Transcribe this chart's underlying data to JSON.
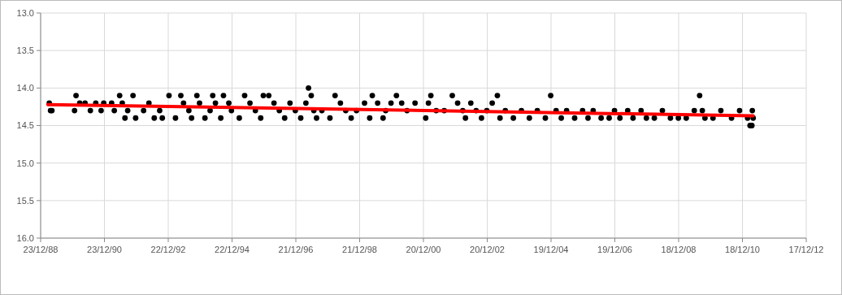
{
  "chart_data": {
    "type": "scatter",
    "marker": "circle",
    "grid": true,
    "xlim": [
      "1988-12-23",
      "2012-12-17"
    ],
    "xticks": [
      {
        "value": "1988-12-23",
        "label": "23/12/88"
      },
      {
        "value": "1990-12-23",
        "label": "23/12/90"
      },
      {
        "value": "1992-12-22",
        "label": "22/12/92"
      },
      {
        "value": "1994-12-22",
        "label": "22/12/94"
      },
      {
        "value": "1996-12-21",
        "label": "21/12/96"
      },
      {
        "value": "1998-12-21",
        "label": "21/12/98"
      },
      {
        "value": "2000-12-20",
        "label": "20/12/00"
      },
      {
        "value": "2002-12-20",
        "label": "20/12/02"
      },
      {
        "value": "2004-12-19",
        "label": "19/12/04"
      },
      {
        "value": "2006-12-19",
        "label": "19/12/06"
      },
      {
        "value": "2008-12-18",
        "label": "18/12/08"
      },
      {
        "value": "2010-12-18",
        "label": "18/12/10"
      },
      {
        "value": "2012-12-17",
        "label": "17/12/12"
      }
    ],
    "ylim": [
      16.0,
      13.0
    ],
    "yticks": [
      {
        "value": 13,
        "label": "13.0"
      },
      {
        "value": 13.5,
        "label": "13.5"
      },
      {
        "value": 14,
        "label": "14.0"
      },
      {
        "value": 14.5,
        "label": "14.5"
      },
      {
        "value": 15,
        "label": "15.0"
      },
      {
        "value": 15.5,
        "label": "15.5"
      },
      {
        "value": 16,
        "label": "16.0"
      }
    ],
    "series": [
      {
        "color": "#000000",
        "x": [
          "1989-04-01",
          "1989-04-15",
          "1989-05-01",
          "1990-01-15",
          "1990-02-01",
          "1990-03-15",
          "1990-05-15",
          "1990-07-15",
          "1990-09-15",
          "1990-11-15",
          "1990-12-15",
          "1991-03-15",
          "1991-04-15",
          "1991-06-15",
          "1991-07-15",
          "1991-08-15",
          "1991-09-15",
          "1991-11-15",
          "1991-12-15",
          "1992-03-15",
          "1992-05-15",
          "1992-07-15",
          "1992-09-15",
          "1992-10-15",
          "1992-12-31",
          "1993-03-15",
          "1993-05-15",
          "1993-06-15",
          "1993-08-15",
          "1993-09-15",
          "1993-11-15",
          "1993-12-15",
          "1994-02-15",
          "1994-04-15",
          "1994-05-15",
          "1994-06-15",
          "1994-08-15",
          "1994-09-15",
          "1994-11-15",
          "1994-12-15",
          "1995-03-15",
          "1995-05-15",
          "1995-07-15",
          "1995-09-15",
          "1995-11-15",
          "1995-12-15",
          "1996-02-15",
          "1996-04-15",
          "1996-06-15",
          "1996-08-15",
          "1996-10-15",
          "1996-12-15",
          "1997-02-15",
          "1997-04-15",
          "1997-05-15",
          "1997-06-15",
          "1997-07-15",
          "1997-08-15",
          "1997-10-15",
          "1998-01-15",
          "1998-03-15",
          "1998-05-15",
          "1998-07-15",
          "1998-09-15",
          "1998-11-15",
          "1999-02-15",
          "1999-04-15",
          "1999-05-15",
          "1999-07-15",
          "1999-09-15",
          "1999-10-15",
          "1999-12-15",
          "2000-02-15",
          "2000-04-15",
          "2000-06-15",
          "2000-09-15",
          "2001-01-15",
          "2001-02-15",
          "2001-03-15",
          "2001-05-15",
          "2001-08-15",
          "2001-11-15",
          "2002-01-15",
          "2002-03-15",
          "2002-04-15",
          "2002-06-15",
          "2002-08-15",
          "2002-10-15",
          "2002-12-15",
          "2003-02-15",
          "2003-04-15",
          "2003-05-15",
          "2003-07-15",
          "2003-10-15",
          "2004-01-15",
          "2004-04-15",
          "2004-07-15",
          "2004-10-15",
          "2004-12-15",
          "2005-02-15",
          "2005-04-15",
          "2005-06-15",
          "2005-09-15",
          "2005-12-15",
          "2006-02-15",
          "2006-04-15",
          "2006-07-15",
          "2006-10-15",
          "2006-12-15",
          "2007-02-15",
          "2007-05-15",
          "2007-07-15",
          "2007-10-15",
          "2007-12-15",
          "2008-03-15",
          "2008-06-15",
          "2008-09-15",
          "2008-12-15",
          "2009-03-15",
          "2009-06-15",
          "2009-08-15",
          "2009-09-15",
          "2009-10-15",
          "2010-01-15",
          "2010-04-15",
          "2010-08-15",
          "2010-11-15",
          "2011-02-15",
          "2011-03-15",
          "2011-04-05",
          "2011-04-10",
          "2011-04-20"
        ],
        "values": [
          14.2,
          14.3,
          14.3,
          14.3,
          14.1,
          14.2,
          14.2,
          14.3,
          14.2,
          14.3,
          14.2,
          14.2,
          14.3,
          14.1,
          14.2,
          14.4,
          14.3,
          14.1,
          14.4,
          14.3,
          14.2,
          14.4,
          14.3,
          14.4,
          14.1,
          14.4,
          14.1,
          14.2,
          14.3,
          14.4,
          14.1,
          14.2,
          14.4,
          14.3,
          14.1,
          14.2,
          14.4,
          14.1,
          14.2,
          14.3,
          14.4,
          14.1,
          14.2,
          14.3,
          14.4,
          14.1,
          14.1,
          14.2,
          14.3,
          14.4,
          14.2,
          14.3,
          14.4,
          14.2,
          14.0,
          14.1,
          14.3,
          14.4,
          14.3,
          14.4,
          14.1,
          14.2,
          14.3,
          14.4,
          14.3,
          14.2,
          14.4,
          14.1,
          14.2,
          14.4,
          14.3,
          14.2,
          14.1,
          14.2,
          14.3,
          14.2,
          14.4,
          14.2,
          14.1,
          14.3,
          14.3,
          14.1,
          14.2,
          14.3,
          14.4,
          14.2,
          14.3,
          14.4,
          14.3,
          14.2,
          14.1,
          14.4,
          14.3,
          14.4,
          14.3,
          14.4,
          14.3,
          14.4,
          14.1,
          14.3,
          14.4,
          14.3,
          14.4,
          14.3,
          14.4,
          14.3,
          14.4,
          14.4,
          14.3,
          14.4,
          14.3,
          14.4,
          14.3,
          14.4,
          14.4,
          14.3,
          14.4,
          14.4,
          14.4,
          14.3,
          14.1,
          14.3,
          14.4,
          14.4,
          14.3,
          14.4,
          14.3,
          14.4,
          14.5,
          14.5,
          14.3,
          14.4
        ]
      },
      {
        "type": "line",
        "marker": "none",
        "color": "#ff0000",
        "x": [
          "1989-03-15",
          "2011-04-20"
        ],
        "values": [
          14.22,
          14.37
        ]
      }
    ]
  }
}
